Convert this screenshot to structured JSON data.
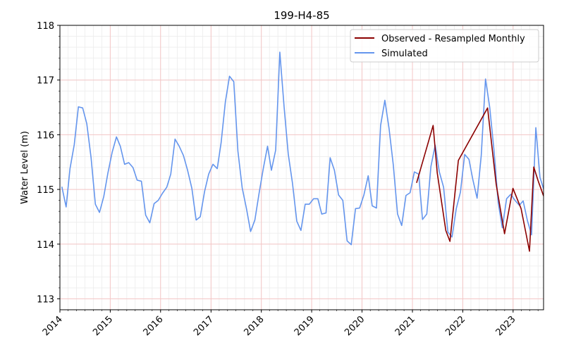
{
  "chart_data": {
    "type": "line",
    "title": "199-H4-85",
    "xlabel": "",
    "ylabel": "Water Level (m)",
    "xlim": [
      "2014-01-01",
      "2023-08-10"
    ],
    "ylim": [
      112.8,
      118.0
    ],
    "x_ticks": [
      "2014",
      "2015",
      "2016",
      "2017",
      "2018",
      "2019",
      "2020",
      "2021",
      "2022",
      "2023"
    ],
    "y_ticks": [
      "113",
      "114",
      "115",
      "116",
      "117",
      "118"
    ],
    "y_tick_values": [
      113,
      114,
      115,
      116,
      117,
      118
    ],
    "grid": {
      "major": true,
      "minor": true
    },
    "legend_position": "top-right",
    "colors": {
      "observed": "#8b0000",
      "simulated": "#6495ed",
      "major_grid": "#f4c6c6",
      "minor_grid": "#ececec"
    },
    "series": [
      {
        "name": "Observed - Resampled Monthly",
        "color": "#8b0000",
        "points": [
          [
            "2021-01-31",
            115.12
          ],
          [
            "2021-05-31",
            116.17
          ],
          [
            "2021-06-30",
            115.3
          ],
          [
            "2021-08-31",
            114.25
          ],
          [
            "2021-09-30",
            114.05
          ],
          [
            "2021-11-30",
            115.53
          ],
          [
            "2022-06-30",
            116.49
          ],
          [
            "2022-08-31",
            115.1
          ],
          [
            "2022-10-31",
            114.19
          ],
          [
            "2022-12-31",
            115.02
          ],
          [
            "2023-02-28",
            114.65
          ],
          [
            "2023-04-30",
            113.87
          ],
          [
            "2023-05-31",
            115.41
          ],
          [
            "2023-06-30",
            115.17
          ],
          [
            "2023-08-10",
            114.88
          ]
        ]
      },
      {
        "name": "Simulated",
        "color": "#6495ed",
        "points": [
          [
            "2014-01-15",
            115.05
          ],
          [
            "2014-02-15",
            114.68
          ],
          [
            "2014-03-15",
            115.38
          ],
          [
            "2014-04-15",
            115.82
          ],
          [
            "2014-05-15",
            116.51
          ],
          [
            "2014-06-15",
            116.49
          ],
          [
            "2014-07-15",
            116.2
          ],
          [
            "2014-08-15",
            115.58
          ],
          [
            "2014-09-15",
            114.73
          ],
          [
            "2014-10-15",
            114.58
          ],
          [
            "2014-11-15",
            114.87
          ],
          [
            "2014-12-15",
            115.3
          ],
          [
            "2015-01-15",
            115.68
          ],
          [
            "2015-02-15",
            115.96
          ],
          [
            "2015-03-15",
            115.79
          ],
          [
            "2015-04-15",
            115.46
          ],
          [
            "2015-05-15",
            115.49
          ],
          [
            "2015-06-15",
            115.4
          ],
          [
            "2015-07-15",
            115.17
          ],
          [
            "2015-08-15",
            115.15
          ],
          [
            "2015-09-15",
            114.53
          ],
          [
            "2015-10-15",
            114.39
          ],
          [
            "2015-11-15",
            114.74
          ],
          [
            "2015-12-15",
            114.8
          ],
          [
            "2016-01-15",
            114.93
          ],
          [
            "2016-02-15",
            115.04
          ],
          [
            "2016-03-15",
            115.28
          ],
          [
            "2016-04-15",
            115.92
          ],
          [
            "2016-05-15",
            115.79
          ],
          [
            "2016-06-15",
            115.62
          ],
          [
            "2016-07-15",
            115.35
          ],
          [
            "2016-08-15",
            115.02
          ],
          [
            "2016-09-15",
            114.44
          ],
          [
            "2016-10-15",
            114.5
          ],
          [
            "2016-11-15",
            114.96
          ],
          [
            "2016-12-15",
            115.28
          ],
          [
            "2017-01-15",
            115.46
          ],
          [
            "2017-02-15",
            115.38
          ],
          [
            "2017-03-15",
            115.85
          ],
          [
            "2017-04-15",
            116.6
          ],
          [
            "2017-05-15",
            117.07
          ],
          [
            "2017-06-15",
            116.97
          ],
          [
            "2017-07-15",
            115.7
          ],
          [
            "2017-08-15",
            115.03
          ],
          [
            "2017-09-15",
            114.65
          ],
          [
            "2017-10-15",
            114.23
          ],
          [
            "2017-11-15",
            114.44
          ],
          [
            "2017-12-15",
            114.92
          ],
          [
            "2018-01-15",
            115.38
          ],
          [
            "2018-02-15",
            115.79
          ],
          [
            "2018-03-15",
            115.35
          ],
          [
            "2018-04-15",
            115.72
          ],
          [
            "2018-05-15",
            117.51
          ],
          [
            "2018-06-15",
            116.51
          ],
          [
            "2018-07-15",
            115.65
          ],
          [
            "2018-08-15",
            115.11
          ],
          [
            "2018-09-15",
            114.42
          ],
          [
            "2018-10-15",
            114.25
          ],
          [
            "2018-11-15",
            114.73
          ],
          [
            "2018-12-15",
            114.73
          ],
          [
            "2019-01-15",
            114.83
          ],
          [
            "2019-02-15",
            114.83
          ],
          [
            "2019-03-15",
            114.55
          ],
          [
            "2019-04-15",
            114.57
          ],
          [
            "2019-05-15",
            115.58
          ],
          [
            "2019-06-15",
            115.35
          ],
          [
            "2019-07-15",
            114.9
          ],
          [
            "2019-08-15",
            114.8
          ],
          [
            "2019-09-15",
            114.06
          ],
          [
            "2019-10-15",
            113.99
          ],
          [
            "2019-11-15",
            114.65
          ],
          [
            "2019-12-15",
            114.66
          ],
          [
            "2020-01-15",
            114.9
          ],
          [
            "2020-02-15",
            115.25
          ],
          [
            "2020-03-15",
            114.7
          ],
          [
            "2020-04-15",
            114.66
          ],
          [
            "2020-05-15",
            116.17
          ],
          [
            "2020-06-15",
            116.63
          ],
          [
            "2020-07-15",
            116.12
          ],
          [
            "2020-08-15",
            115.45
          ],
          [
            "2020-09-15",
            114.55
          ],
          [
            "2020-10-15",
            114.34
          ],
          [
            "2020-11-15",
            114.89
          ],
          [
            "2020-12-15",
            114.94
          ],
          [
            "2021-01-15",
            115.32
          ],
          [
            "2021-02-15",
            115.28
          ],
          [
            "2021-03-15",
            114.45
          ],
          [
            "2021-04-15",
            114.55
          ],
          [
            "2021-05-15",
            115.42
          ],
          [
            "2021-06-15",
            115.81
          ],
          [
            "2021-07-15",
            115.32
          ],
          [
            "2021-08-15",
            115.04
          ],
          [
            "2021-09-15",
            114.22
          ],
          [
            "2021-10-15",
            114.13
          ],
          [
            "2021-11-15",
            114.65
          ],
          [
            "2021-12-15",
            114.95
          ],
          [
            "2022-01-15",
            115.64
          ],
          [
            "2022-02-15",
            115.55
          ],
          [
            "2022-03-15",
            115.18
          ],
          [
            "2022-04-15",
            114.84
          ],
          [
            "2022-05-15",
            115.62
          ],
          [
            "2022-06-15",
            117.02
          ],
          [
            "2022-07-15",
            116.51
          ],
          [
            "2022-08-15",
            115.73
          ],
          [
            "2022-09-15",
            114.76
          ],
          [
            "2022-10-15",
            114.3
          ],
          [
            "2022-11-15",
            114.83
          ],
          [
            "2022-12-15",
            114.91
          ],
          [
            "2023-01-15",
            114.8
          ],
          [
            "2023-02-15",
            114.71
          ],
          [
            "2023-03-15",
            114.79
          ],
          [
            "2023-04-15",
            114.43
          ],
          [
            "2023-05-15",
            114.17
          ],
          [
            "2023-06-15",
            116.13
          ],
          [
            "2023-07-15",
            115.22
          ],
          [
            "2023-08-10",
            115.01
          ]
        ]
      }
    ]
  }
}
